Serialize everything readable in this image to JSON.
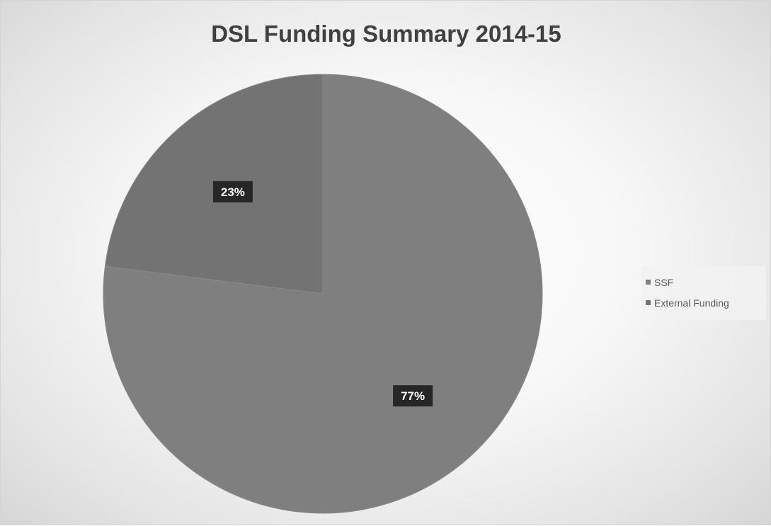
{
  "chart_data": {
    "type": "pie",
    "title": "DSL Funding Summary 2014-15",
    "categories": [
      "SSF",
      "External Funding"
    ],
    "values": [
      77,
      23
    ],
    "data_labels": [
      "77%",
      "23%"
    ],
    "colors": [
      "#7f7f7f",
      "#737373"
    ],
    "legend_position": "right",
    "start_angle_deg": 0,
    "direction": "clockwise"
  }
}
